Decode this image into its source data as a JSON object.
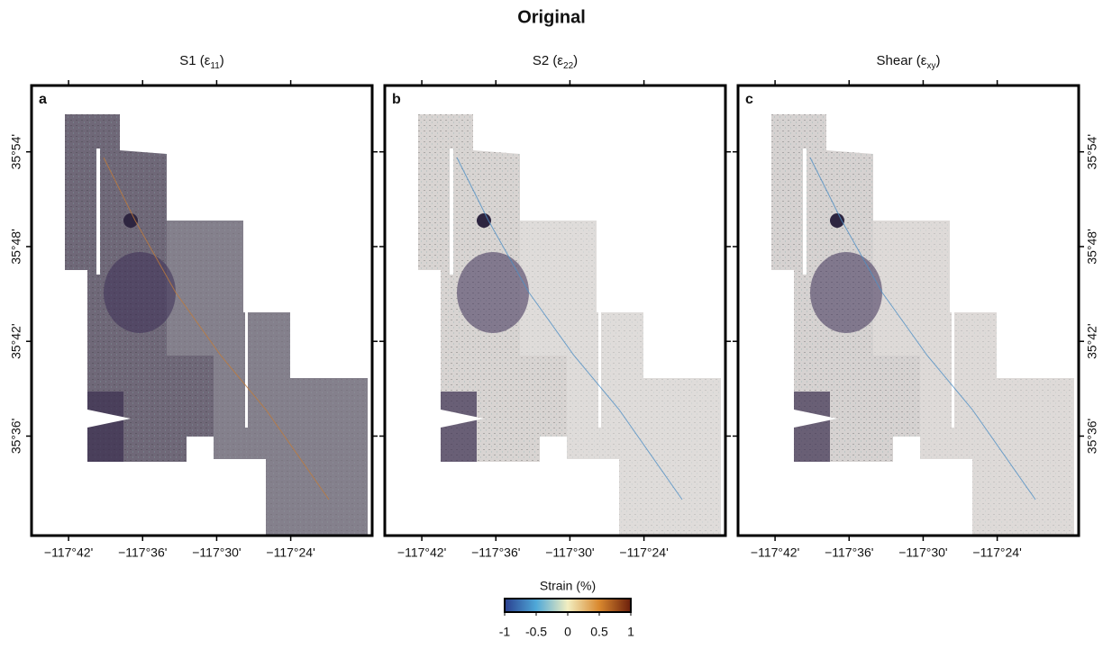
{
  "title": "Original",
  "panels": [
    {
      "letter": "a",
      "title_prefix": "S1 (ε",
      "subscript": "11",
      "title_suffix": ")",
      "fill": "#6f6878",
      "light": "#9a97a0"
    },
    {
      "letter": "b",
      "title_prefix": "S2 (ε",
      "subscript": "22",
      "title_suffix": ")",
      "fill": "#d8d4d2",
      "light": "#e6e3e1"
    },
    {
      "letter": "c",
      "title_prefix": "Shear (ε",
      "subscript": "xy",
      "title_suffix": ")",
      "fill": "#d6d2d1",
      "light": "#e5e2e0"
    }
  ],
  "map": {
    "xlim": [
      -117.75,
      -117.29
    ],
    "ylim": [
      35.495,
      35.97
    ],
    "xticks": [
      {
        "value": -117.7,
        "label": "−117°42'"
      },
      {
        "value": -117.6,
        "label": "−117°36'"
      },
      {
        "value": -117.5,
        "label": "−117°30'"
      },
      {
        "value": -117.4,
        "label": "−117°24'"
      }
    ],
    "yticks": [
      {
        "value": 35.9,
        "label": "35°54'"
      },
      {
        "value": 35.8,
        "label": "35°48'"
      },
      {
        "value": 35.7,
        "label": "35°42'"
      },
      {
        "value": 35.6,
        "label": "35°36'"
      }
    ]
  },
  "colorbar": {
    "label": "Strain (%)",
    "lim": [
      -1,
      1
    ],
    "ticks": [
      -1,
      -0.5,
      0,
      0.5,
      1
    ],
    "colors": [
      "#2a3f8f",
      "#4fa8d8",
      "#f2eec0",
      "#d9882e",
      "#6b1f0c"
    ]
  }
}
